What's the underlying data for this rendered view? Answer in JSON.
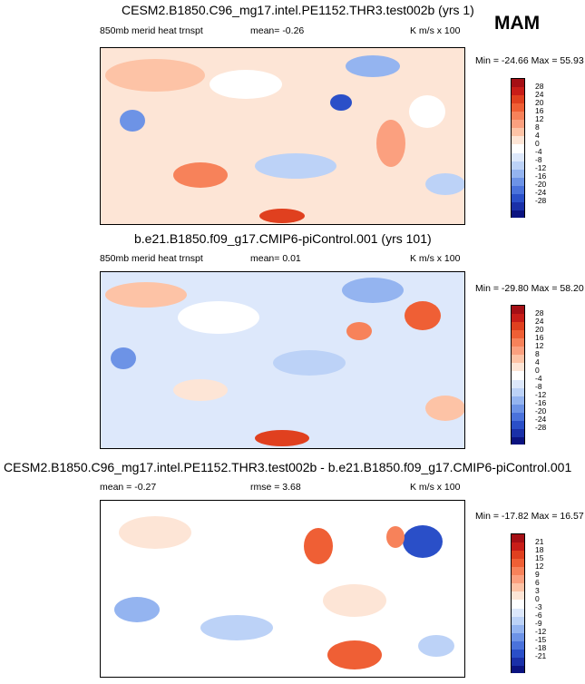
{
  "season": "MAM",
  "panels": [
    {
      "title": "CESM2.B1850.C96_mg17.intel.PE1152.THR3.test002b (yrs 1)",
      "left_label": "850mb merid heat trnspt",
      "center_label": "mean=  -0.26",
      "right_label": "K m/s x 100",
      "minmax": "Min = -24.66 Max =  55.93",
      "colorbar_labels": [
        "28",
        "24",
        "20",
        "16",
        "12",
        "8",
        "4",
        "0",
        "-4",
        "-8",
        "-12",
        "-16",
        "-20",
        "-24",
        "-28"
      ]
    },
    {
      "title": "b.e21.B1850.f09_g17.CMIP6-piControl.001 (yrs 101)",
      "left_label": "850mb merid heat trnspt",
      "center_label": "mean=  0.01",
      "right_label": "K m/s x 100",
      "minmax": "Min = -29.80 Max =  58.20",
      "colorbar_labels": [
        "28",
        "24",
        "20",
        "16",
        "12",
        "8",
        "4",
        "0",
        "-4",
        "-8",
        "-12",
        "-16",
        "-20",
        "-24",
        "-28"
      ]
    },
    {
      "title": "CESM2.B1850.C96_mg17.intel.PE1152.THR3.test002b - b.e21.B1850.f09_g17.CMIP6-piControl.001",
      "left_label": "mean =  -0.27",
      "center_label": "rmse =   3.68",
      "right_label": "K m/s x 100",
      "minmax": "Min = -17.82 Max =  16.57",
      "colorbar_labels": [
        "21",
        "18",
        "15",
        "12",
        "9",
        "6",
        "3",
        "0",
        "-3",
        "-6",
        "-9",
        "-12",
        "-15",
        "-18",
        "-21"
      ]
    }
  ],
  "colors": {
    "palette": [
      "#a50f15",
      "#c81d18",
      "#e0401f",
      "#ef5f35",
      "#f7825a",
      "#fba07f",
      "#fdc3a6",
      "#fde5d6",
      "#ffffff",
      "#dde8fb",
      "#bcd2f7",
      "#94b4f0",
      "#6d93e6",
      "#4a72db",
      "#2a4fc8",
      "#1a30a8",
      "#0b1380"
    ]
  }
}
